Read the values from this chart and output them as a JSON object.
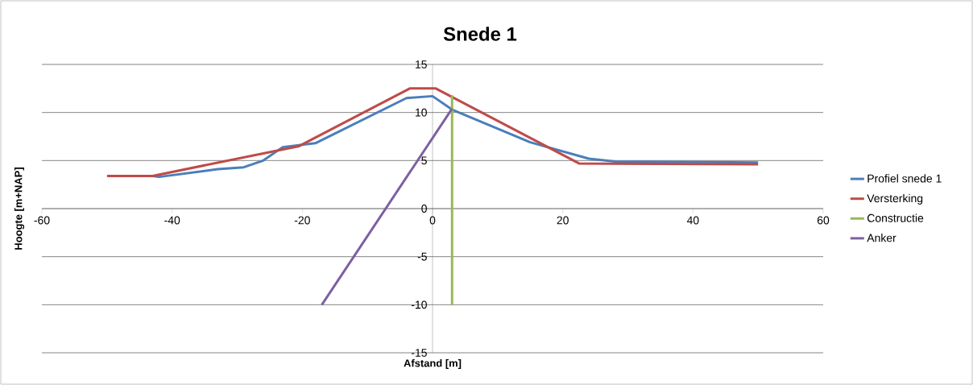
{
  "chart_data": {
    "type": "line",
    "title": "Snede 1",
    "xlabel": "Afstand [m]",
    "ylabel": "Hoogte [m+NAP]",
    "xlim": [
      -60,
      60
    ],
    "ylim": [
      -15,
      15
    ],
    "xticks": [
      -60,
      -40,
      -20,
      0,
      20,
      40,
      60
    ],
    "yticks": [
      -15,
      -10,
      -5,
      0,
      5,
      10,
      15
    ],
    "grid": "y",
    "legend": "right",
    "marker": "none",
    "series": [
      {
        "name": "Profiel snede 1",
        "color": "#4a7ebb",
        "x": [
          -43,
          -42,
          -33,
          -29,
          -26,
          -23,
          -18,
          -4,
          0,
          3,
          15,
          24,
          28,
          50
        ],
        "values": [
          3.4,
          3.3,
          4.1,
          4.3,
          5,
          6.4,
          6.8,
          11.5,
          11.7,
          10.3,
          6.9,
          5.2,
          4.9,
          4.8
        ]
      },
      {
        "name": "Versterking",
        "color": "#be4b48",
        "x": [
          -50,
          -43,
          -20.5,
          -3.5,
          0.5,
          22.5,
          50
        ],
        "values": [
          3.4,
          3.4,
          6.5,
          12.5,
          12.5,
          4.7,
          4.6
        ]
      },
      {
        "name": "Constructie",
        "color": "#98b954",
        "x": [
          3,
          3
        ],
        "values": [
          -10,
          11.8
        ]
      },
      {
        "name": "Anker",
        "color": "#7d60a0",
        "x": [
          -17,
          3
        ],
        "values": [
          -10,
          10.4
        ]
      }
    ]
  }
}
